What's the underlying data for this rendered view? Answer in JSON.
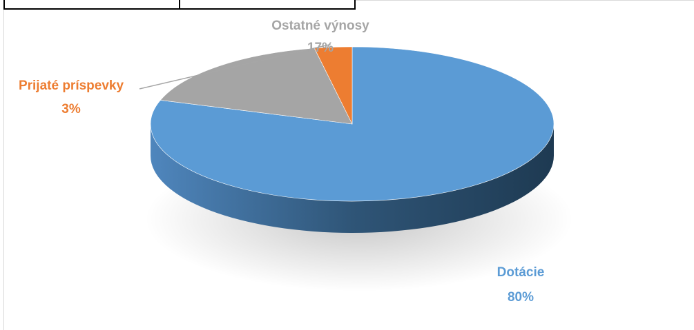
{
  "chart_data": {
    "type": "pie",
    "style": "3d",
    "categories": [
      "Dotácie",
      "Ostatné výnosy",
      "Prijaté príspevky"
    ],
    "values": [
      80,
      17,
      3
    ],
    "labels": [
      {
        "name": "Dotácie",
        "value": "80%"
      },
      {
        "name": "Ostatné výnosy",
        "value": "17%"
      },
      {
        "name": "Prijaté príspevky",
        "value": "3%"
      }
    ],
    "colors": [
      "#5B9BD5",
      "#A5A5A5",
      "#ED7D31"
    ],
    "title": "",
    "legend": "none"
  }
}
